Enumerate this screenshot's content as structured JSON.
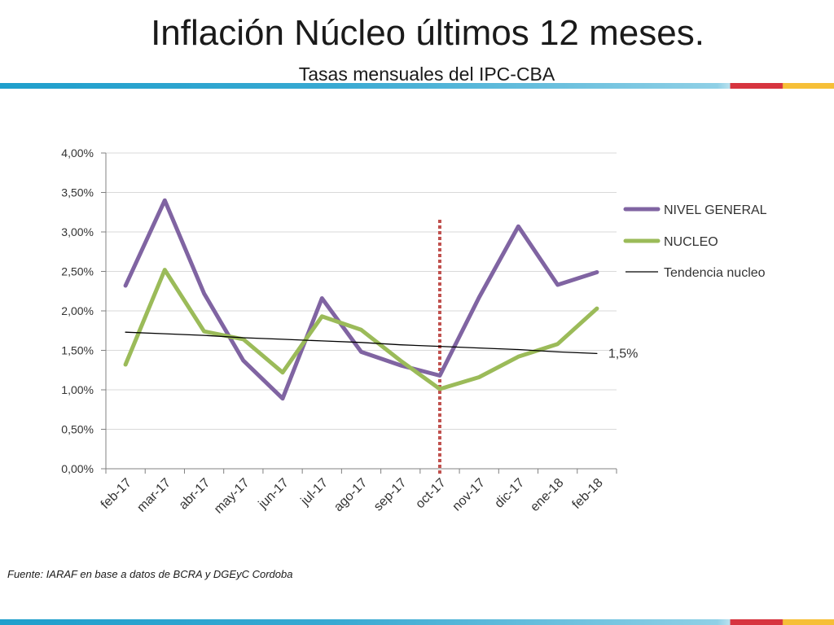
{
  "slide": {
    "title": "Inflación Núcleo últimos 12 meses.",
    "subtitle": "Tasas mensuales del IPC-CBA",
    "source": "Fuente: IARAF en base a datos de  BCRA y DGEyC Cordoba"
  },
  "colors": {
    "nivel_general": "#8064a2",
    "nucleo": "#9bbb59",
    "tendencia": "#000000",
    "marker": "#c0504d",
    "grid": "#d9d9d9"
  },
  "chart_data": {
    "type": "line",
    "categories": [
      "feb-17",
      "mar-17",
      "abr-17",
      "may-17",
      "jun-17",
      "jul-17",
      "ago-17",
      "sep-17",
      "oct-17",
      "nov-17",
      "dic-17",
      "ene-18",
      "feb-18"
    ],
    "series": [
      {
        "name": "NIVEL GENERAL",
        "values": [
          2.32,
          3.4,
          2.22,
          1.37,
          0.89,
          2.16,
          1.48,
          1.31,
          1.18,
          2.17,
          3.07,
          2.33,
          2.49
        ]
      },
      {
        "name": "NUCLEO",
        "values": [
          1.32,
          2.52,
          1.74,
          1.64,
          1.22,
          1.93,
          1.76,
          1.37,
          1.01,
          1.16,
          1.42,
          1.58,
          2.03
        ]
      },
      {
        "name": "Tendencia nucleo",
        "values": [
          1.73,
          1.71,
          1.69,
          1.66,
          1.64,
          1.62,
          1.6,
          1.57,
          1.55,
          1.53,
          1.51,
          1.48,
          1.46
        ]
      }
    ],
    "yticks": [
      "0,00%",
      "0,50%",
      "1,00%",
      "1,50%",
      "2,00%",
      "2,50%",
      "3,00%",
      "3,50%",
      "4,00%"
    ],
    "ylim": [
      0,
      4
    ],
    "ystep": 0.5,
    "grid": true,
    "legend_position": "right",
    "vertical_marker": {
      "category": "oct-17",
      "style": "dotted"
    },
    "annotation": {
      "text": "1,5%",
      "series": "Tendencia nucleo",
      "category": "feb-18"
    }
  }
}
